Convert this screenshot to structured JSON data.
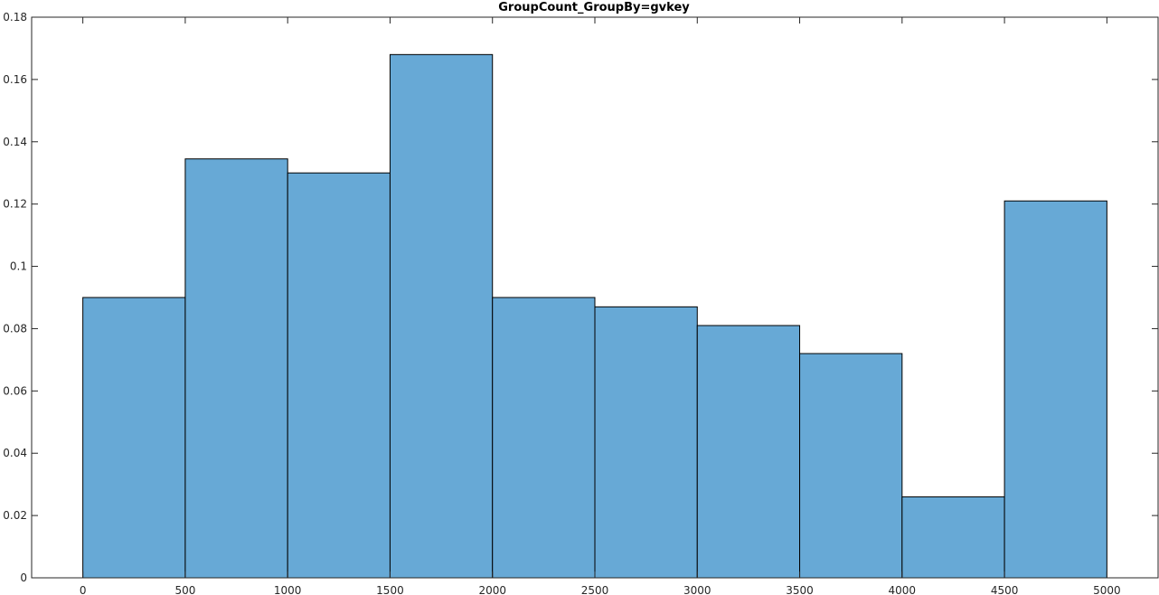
{
  "chart_data": {
    "type": "bar",
    "title": "GroupCount_GroupBy=gvkey",
    "xlabel": "",
    "ylabel": "",
    "bin_edges": [
      0,
      500,
      1000,
      1500,
      2000,
      2500,
      3000,
      3500,
      4000,
      4500,
      5000
    ],
    "values": [
      0.09,
      0.1345,
      0.13,
      0.168,
      0.09,
      0.087,
      0.081,
      0.072,
      0.026,
      0.121
    ],
    "xlim": [
      -250,
      5250
    ],
    "ylim": [
      0,
      0.18
    ],
    "x_ticks": [
      0,
      500,
      1000,
      1500,
      2000,
      2500,
      3000,
      3500,
      4000,
      4500,
      5000
    ],
    "x_tick_labels": [
      "0",
      "500",
      "1000",
      "1500",
      "2000",
      "2500",
      "3000",
      "3500",
      "4000",
      "4500",
      "5000"
    ],
    "y_ticks": [
      0,
      0.02,
      0.04,
      0.06,
      0.08,
      0.1,
      0.12,
      0.14,
      0.16,
      0.18
    ],
    "y_tick_labels": [
      "0",
      "0.02",
      "0.04",
      "0.06",
      "0.08",
      "0.1",
      "0.12",
      "0.14",
      "0.16",
      "0.18"
    ],
    "grid": false,
    "legend": "none",
    "bar_color": "#67a9d6",
    "edge_color": "#000000"
  }
}
